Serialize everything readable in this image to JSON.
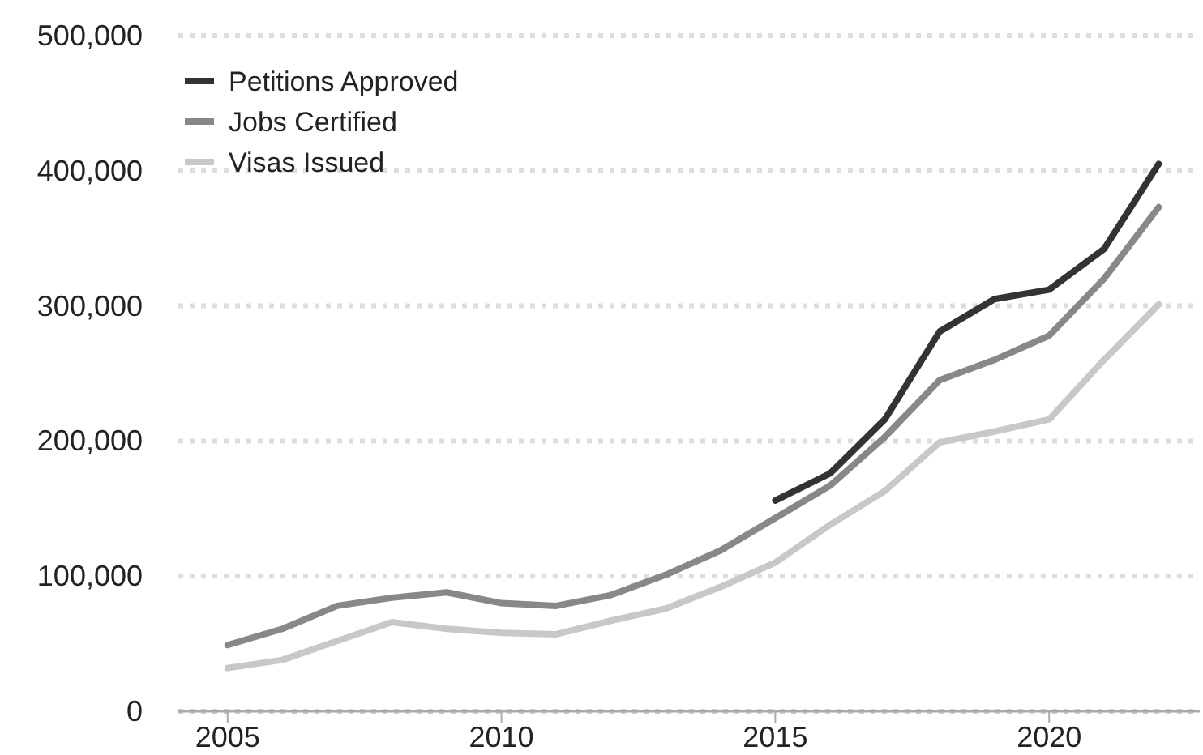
{
  "chart_data": {
    "type": "line",
    "x": [
      2005,
      2006,
      2007,
      2008,
      2009,
      2010,
      2011,
      2012,
      2013,
      2014,
      2015,
      2016,
      2017,
      2018,
      2019,
      2020,
      2021,
      2022
    ],
    "series": [
      {
        "name": "Petitions Approved",
        "color": "#333333",
        "values": [
          null,
          null,
          null,
          null,
          null,
          null,
          null,
          null,
          null,
          null,
          156000,
          176000,
          216000,
          281000,
          305000,
          312000,
          342000,
          405000
        ]
      },
      {
        "name": "Jobs Certified",
        "color": "#888888",
        "values": [
          49000,
          61000,
          78000,
          84000,
          88000,
          80000,
          78000,
          86000,
          101000,
          119000,
          143000,
          167000,
          203000,
          245000,
          260000,
          278000,
          320000,
          373000
        ]
      },
      {
        "name": "Visas Issued",
        "color": "#c8c8c8",
        "values": [
          32000,
          38000,
          52000,
          66000,
          61000,
          58000,
          57000,
          67000,
          76000,
          92000,
          110000,
          138000,
          163000,
          199000,
          207000,
          216000,
          260000,
          301000
        ]
      }
    ],
    "xlim": [
      2004.1,
      2022.75
    ],
    "xticks": [
      2005,
      2010,
      2015,
      2020
    ],
    "ylim": [
      0,
      500000
    ],
    "yticks": [
      {
        "value": 0,
        "label": "0"
      },
      {
        "value": 100000,
        "label": "100,000"
      },
      {
        "value": 200000,
        "label": "200,000"
      },
      {
        "value": 300000,
        "label": "300,000"
      },
      {
        "value": 400000,
        "label": "400,000"
      },
      {
        "value": 500000,
        "label": "500,000"
      }
    ],
    "grid": "y",
    "legend": "top left",
    "line_style": "solid",
    "marker": "none"
  }
}
